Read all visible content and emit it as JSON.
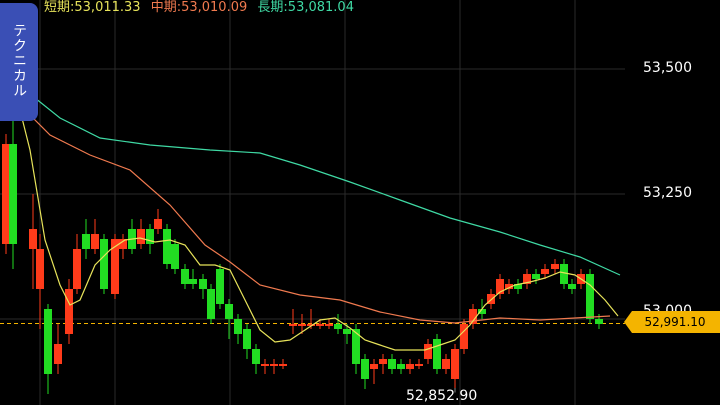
{
  "legend": {
    "short_label": "短期:",
    "short_value": "53,011.33",
    "mid_label": "中期:",
    "mid_value": "53,010.09",
    "long_label": "長期:",
    "long_value": "53,081.04",
    "short_color": "#e7e35a",
    "mid_color": "#f07a4f",
    "long_color": "#3fd9a4"
  },
  "side_tab": {
    "label": "テクニカル",
    "icon": "technical-tab"
  },
  "price_axis": {
    "labels": [
      "53,500",
      "53,250",
      "53,000"
    ]
  },
  "current_price": {
    "label": "52,991.10",
    "color": "#f4b400"
  },
  "low_marker": {
    "label": "52,852.90"
  },
  "chart_data": {
    "type": "candlestick",
    "y_axis_ticks": [
      53500,
      53250,
      53000
    ],
    "current_price": 52991.1,
    "period_low": 52852.9,
    "up_color": "#ff3b1a",
    "down_color": "#22dd22",
    "moving_averages": [
      {
        "label": "短期",
        "value": 53011.33
      },
      {
        "label": "中期",
        "value": 53010.09
      },
      {
        "label": "長期",
        "value": 53081.04
      }
    ]
  }
}
